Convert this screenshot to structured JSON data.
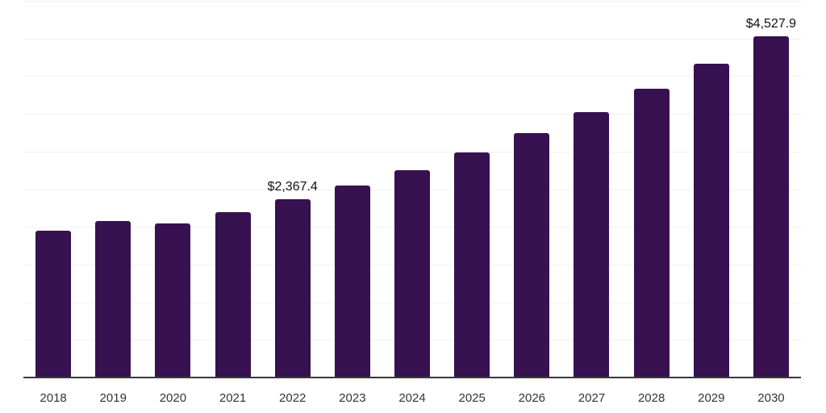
{
  "chart_data": {
    "type": "bar",
    "title": "",
    "categories": [
      "2018",
      "2019",
      "2020",
      "2021",
      "2022",
      "2023",
      "2024",
      "2025",
      "2026",
      "2027",
      "2028",
      "2029",
      "2030"
    ],
    "values": [
      1950,
      2080,
      2050,
      2190,
      2367.4,
      2550,
      2750,
      2990,
      3240,
      3520,
      3830,
      4160,
      4527.9
    ],
    "annotations": [
      {
        "index": 4,
        "category": "2022",
        "label": "$2,367.4"
      },
      {
        "index": 12,
        "category": "2030",
        "label": "$4,527.9"
      }
    ],
    "xlabel": "",
    "ylabel": "",
    "ylim": [
      0,
      5000
    ],
    "grid_step": 500,
    "grid": "horizontal-only",
    "y_tick_labels": "none",
    "legend": "none",
    "colors": {
      "bar": "#371150",
      "gridline": "#f2f2f2",
      "axis_line": "#3a3a3a",
      "tick_label": "#333333",
      "data_label": "#111111",
      "background": "#ffffff"
    }
  }
}
